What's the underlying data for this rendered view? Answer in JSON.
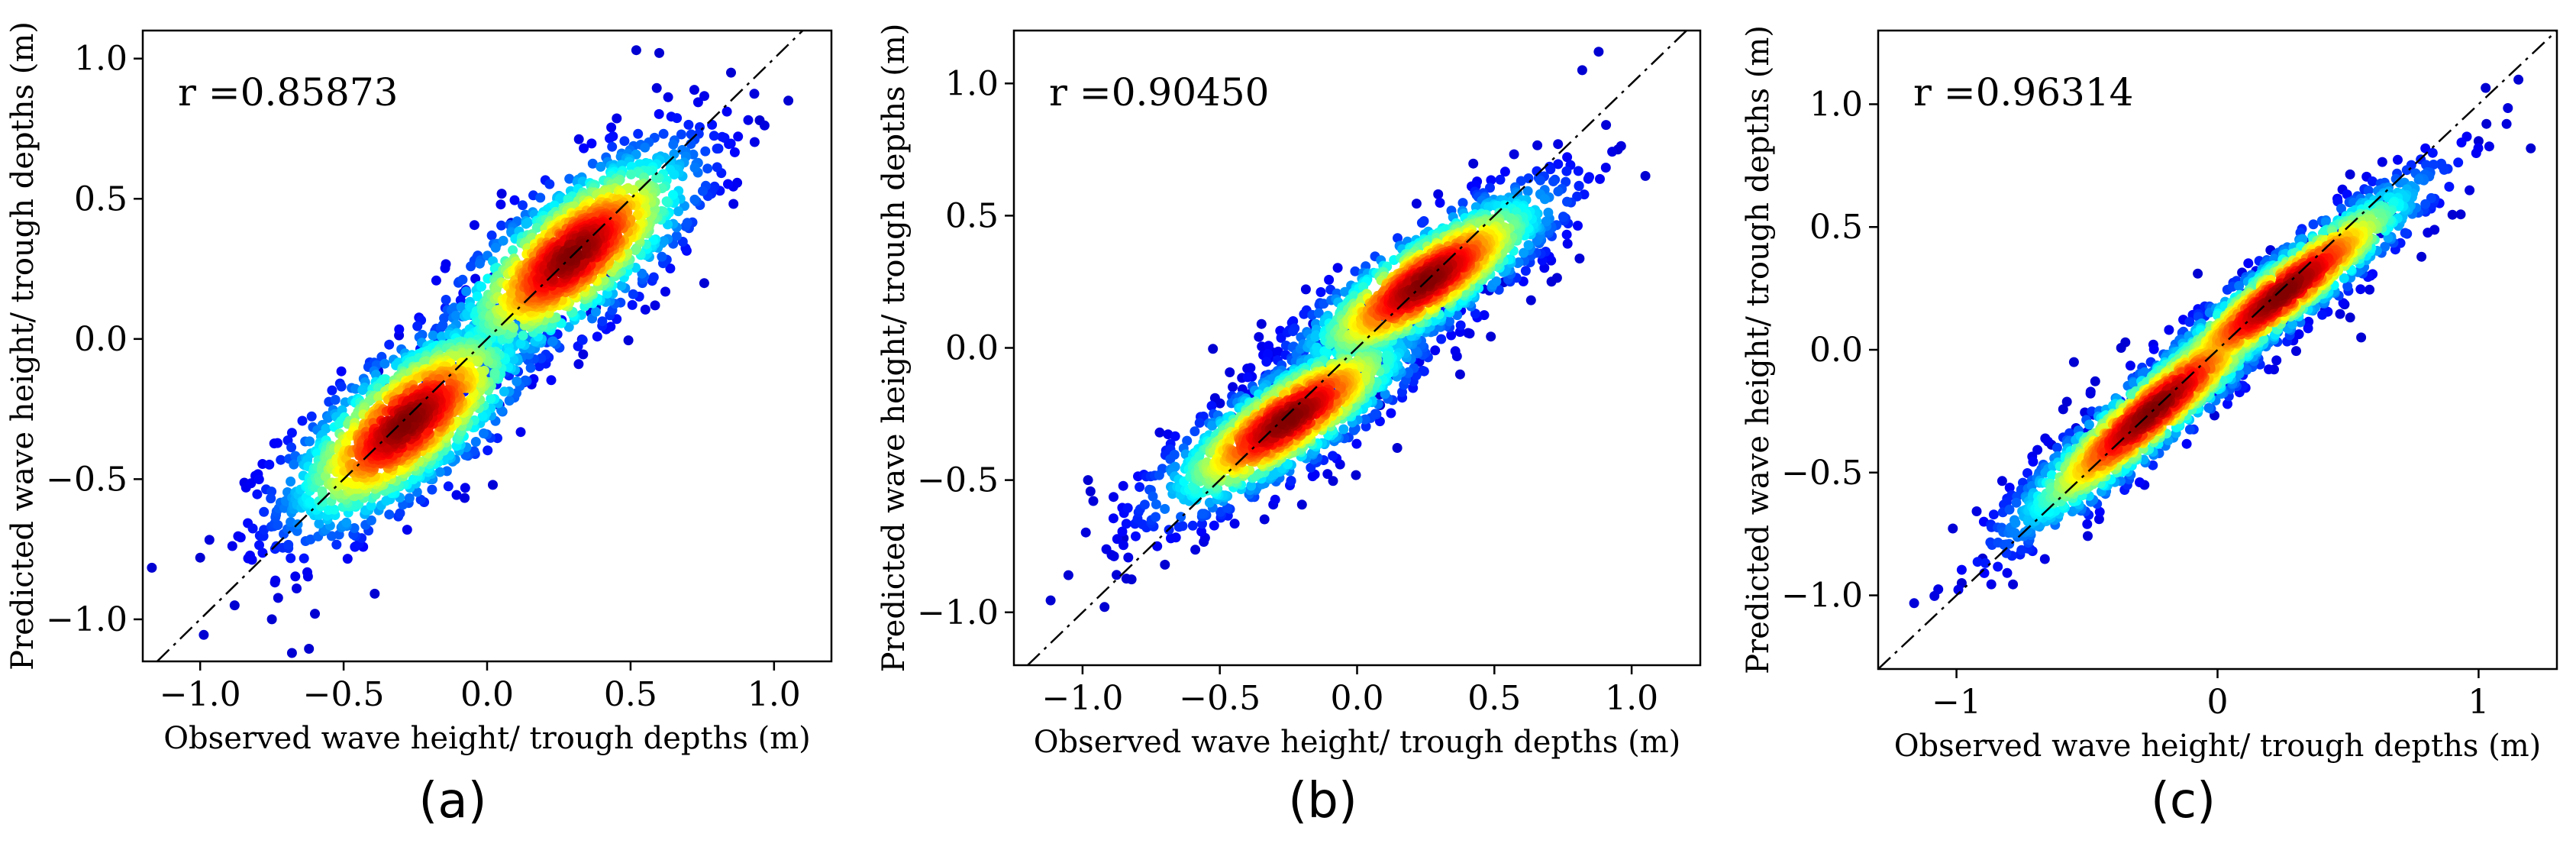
{
  "chart_data": [
    {
      "type": "scatter",
      "panel_label": "(a)",
      "annotation": "r =0.85873",
      "xlabel": "Observed wave height/ trough depths (m)",
      "ylabel": "Predicted wave height/ trough depths (m)",
      "xlim": [
        -1.2,
        1.2
      ],
      "ylim": [
        -1.15,
        1.1
      ],
      "xticks": [
        -1.0,
        -0.5,
        0.0,
        0.5,
        1.0
      ],
      "xtick_labels": [
        "−1.0",
        "−0.5",
        "0.0",
        "0.5",
        "1.0"
      ],
      "yticks": [
        -1.0,
        -0.5,
        0.0,
        0.5,
        1.0
      ],
      "ytick_labels": [
        "−1.0",
        "−0.5",
        "0.0",
        "0.5",
        "1.0"
      ],
      "reference_line": {
        "style": "dash-dot",
        "from": [
          -1.2,
          -1.2
        ],
        "to": [
          1.2,
          1.2
        ]
      },
      "colormap": "jet (point density)",
      "clusters": [
        {
          "center": [
            -0.28,
            -0.3
          ],
          "sx": 0.22,
          "sy": 0.2,
          "rho": 0.72
        },
        {
          "center": [
            0.3,
            0.3
          ],
          "sx": 0.22,
          "sy": 0.2,
          "rho": 0.72
        }
      ],
      "outlier_points": [
        [
          -0.68,
          -1.12
        ],
        [
          -0.75,
          -1.0
        ],
        [
          0.52,
          1.03
        ],
        [
          0.6,
          1.02
        ],
        [
          1.05,
          0.85
        ],
        [
          -1.0,
          -0.78
        ],
        [
          0.95,
          0.78
        ],
        [
          -0.88,
          -0.95
        ],
        [
          0.85,
          0.95
        ],
        [
          -0.6,
          -0.98
        ]
      ],
      "grid": false
    },
    {
      "type": "scatter",
      "panel_label": "(b)",
      "annotation": "r =0.90450",
      "xlabel": "Observed wave height/ trough depths (m)",
      "ylabel": "Predicted wave height/ trough depths (m)",
      "xlim": [
        -1.25,
        1.25
      ],
      "ylim": [
        -1.2,
        1.2
      ],
      "xticks": [
        -1.0,
        -0.5,
        0.0,
        0.5,
        1.0
      ],
      "xtick_labels": [
        "−1.0",
        "−0.5",
        "0.0",
        "0.5",
        "1.0"
      ],
      "yticks": [
        -1.0,
        -0.5,
        0.0,
        0.5,
        1.0
      ],
      "ytick_labels": [
        "−1.0",
        "−0.5",
        "0.0",
        "0.5",
        "1.0"
      ],
      "reference_line": {
        "style": "dash-dot",
        "from": [
          -1.25,
          -1.25
        ],
        "to": [
          1.25,
          1.25
        ]
      },
      "colormap": "jet (point density)",
      "clusters": [
        {
          "center": [
            -0.25,
            -0.27
          ],
          "sx": 0.24,
          "sy": 0.18,
          "rho": 0.82
        },
        {
          "center": [
            0.25,
            0.25
          ],
          "sx": 0.24,
          "sy": 0.18,
          "rho": 0.82
        }
      ],
      "outlier_points": [
        [
          -0.92,
          -0.98
        ],
        [
          0.88,
          1.12
        ],
        [
          0.82,
          1.05
        ],
        [
          -0.98,
          -0.5
        ],
        [
          1.05,
          0.65
        ],
        [
          -0.85,
          -0.72
        ],
        [
          0.95,
          0.75
        ],
        [
          -0.7,
          -0.82
        ]
      ],
      "grid": false
    },
    {
      "type": "scatter",
      "panel_label": "(c)",
      "annotation": "r =0.96314",
      "xlabel": "Observed wave height/ trough depths (m)",
      "ylabel": "Predicted wave height/ trough depths (m)",
      "xlim": [
        -1.3,
        1.3
      ],
      "ylim": [
        -1.3,
        1.3
      ],
      "xticks": [
        -1,
        0,
        1
      ],
      "xtick_labels": [
        "−1",
        "0",
        "1"
      ],
      "yticks": [
        -1.0,
        -0.5,
        0.0,
        0.5,
        1.0
      ],
      "ytick_labels": [
        "−1.0",
        "−0.5",
        "0.0",
        "0.5",
        "1.0"
      ],
      "reference_line": {
        "style": "dash-dot",
        "from": [
          -1.3,
          -1.3
        ],
        "to": [
          1.3,
          1.3
        ]
      },
      "colormap": "jet (point density)",
      "clusters": [
        {
          "center": [
            -0.25,
            -0.25
          ],
          "sx": 0.28,
          "sy": 0.26,
          "rho": 0.93
        },
        {
          "center": [
            0.25,
            0.23
          ],
          "sx": 0.28,
          "sy": 0.24,
          "rho": 0.93
        }
      ],
      "outlier_points": [
        [
          -0.98,
          -0.95
        ],
        [
          1.03,
          0.92
        ],
        [
          1.2,
          0.82
        ],
        [
          -0.9,
          -0.85
        ],
        [
          0.9,
          0.55
        ],
        [
          0.55,
          0.05
        ],
        [
          -0.55,
          -0.05
        ],
        [
          1.0,
          0.85
        ]
      ],
      "grid": false
    }
  ]
}
